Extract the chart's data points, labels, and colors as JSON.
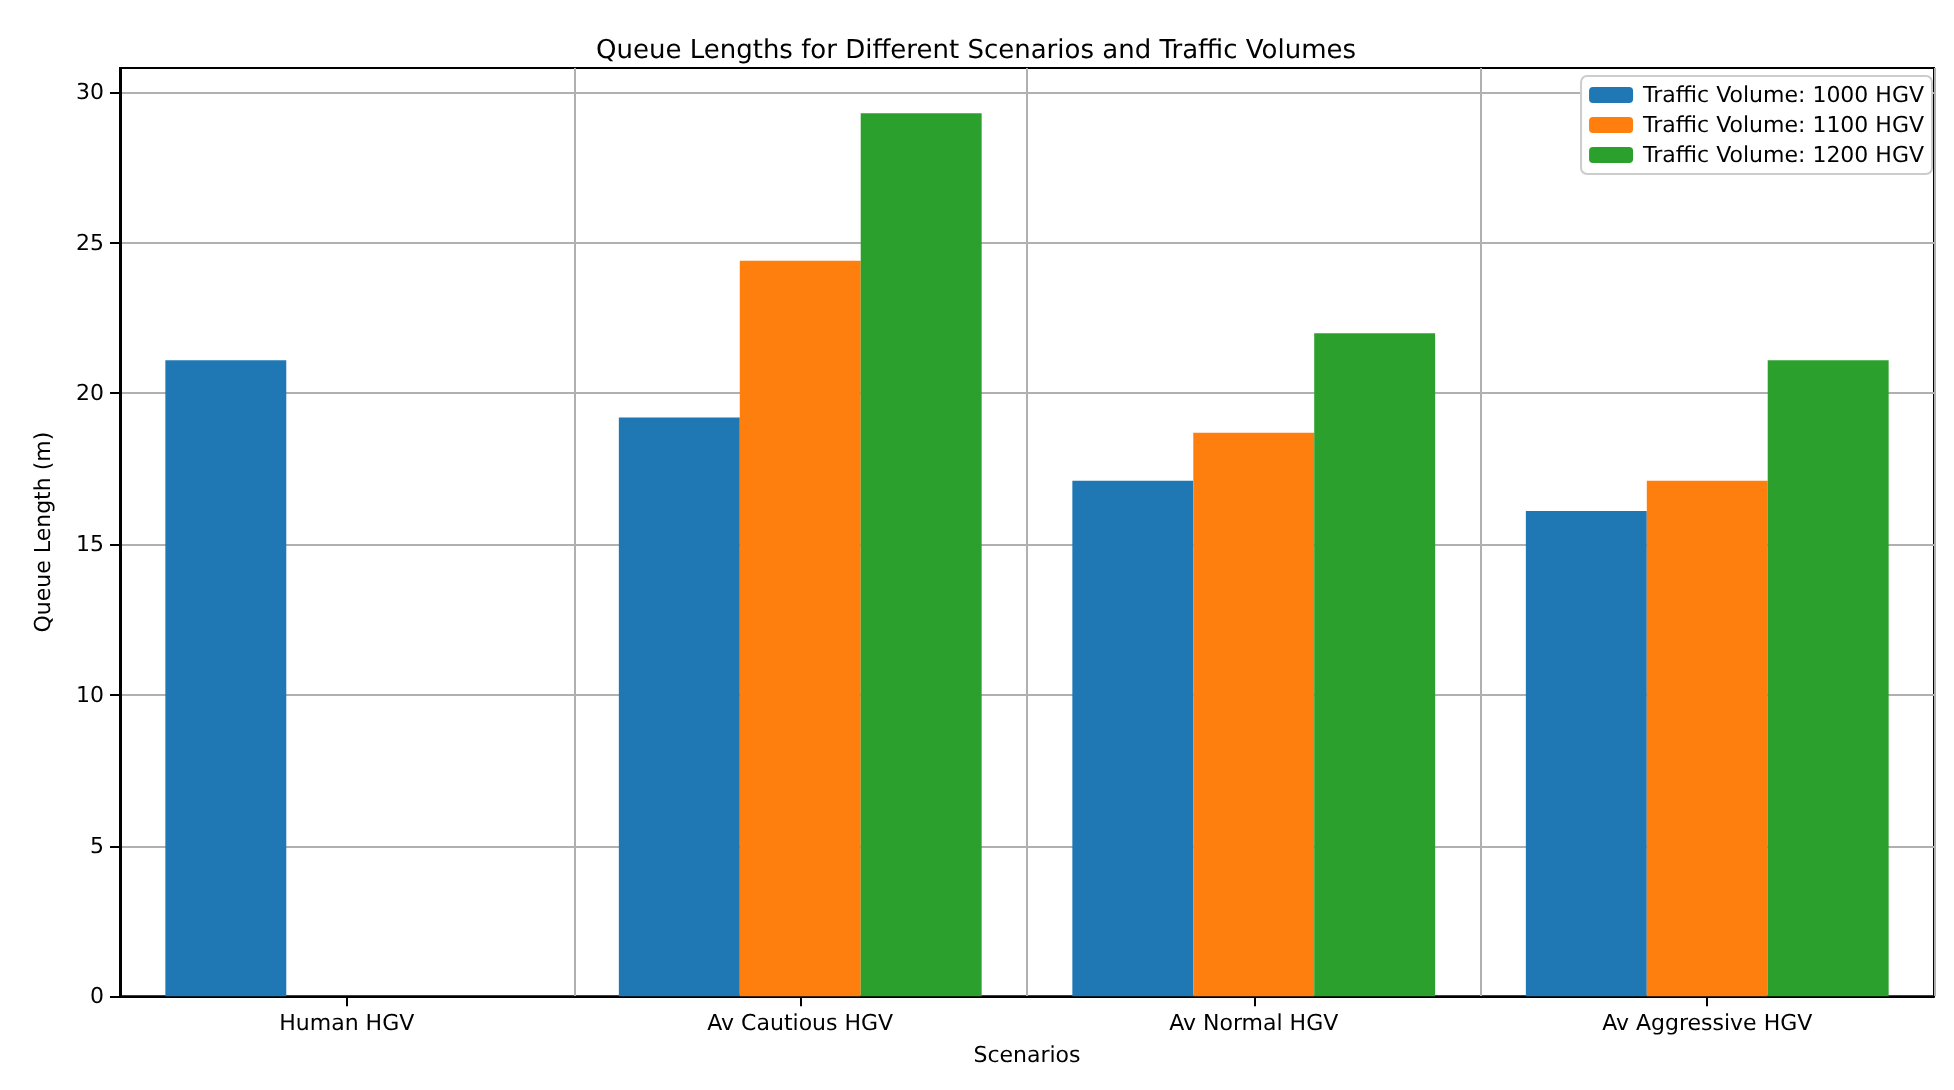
{
  "chart_data": {
    "type": "bar",
    "title": "Queue Lengths for Different Scenarios and Traffic Volumes",
    "xlabel": "Scenarios",
    "ylabel": "Queue Length (m)",
    "categories": [
      "Human HGV",
      "Av Cautious HGV",
      "Av Normal HGV",
      "Av Aggressive HGV"
    ],
    "series": [
      {
        "name": "Traffic Volume: 1000 HGV",
        "color": "#1f77b4",
        "values": [
          21.1,
          19.2,
          17.1,
          16.1
        ]
      },
      {
        "name": "Traffic Volume: 1100 HGV",
        "color": "#ff7f0e",
        "values": [
          null,
          24.4,
          18.7,
          17.1
        ]
      },
      {
        "name": "Traffic Volume: 1200 HGV",
        "color": "#2ca02c",
        "values": [
          null,
          29.3,
          22.0,
          21.1
        ]
      }
    ],
    "ylim": [
      0,
      30.8
    ],
    "yticks": [
      0,
      5,
      10,
      15,
      20,
      25,
      30
    ],
    "grid": true,
    "legend": "top right"
  }
}
